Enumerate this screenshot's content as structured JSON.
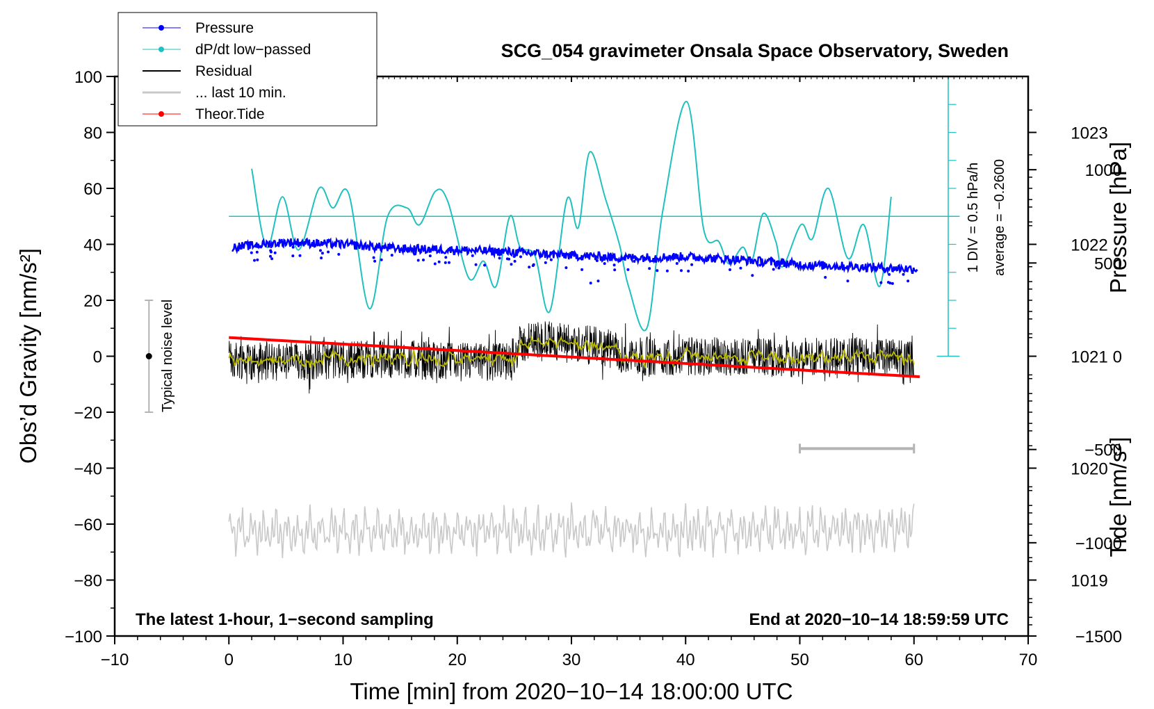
{
  "chart_data": {
    "type": "line",
    "title": "SCG_054 gravimeter Onsala Space Observatory, Sweden",
    "xlabel": "Time [min] from 2020−10−14 18:00:00 UTC",
    "ylabel_left": "Obs’d Gravity [nm/s²]",
    "ylabel_right_pressure": "Pressure [hPa]",
    "ylabel_right_tide": "Tide [nm/s²]",
    "xlim": [
      -10,
      70
    ],
    "ylim": [
      -100,
      100
    ],
    "pressure_ylim": [
      1018.5,
      1023.5
    ],
    "tide_ylim": [
      -1500,
      1500
    ],
    "x_ticks": [
      "−10",
      "0",
      "10",
      "20",
      "30",
      "40",
      "50",
      "60",
      "70"
    ],
    "y_ticks": [
      "100",
      "80",
      "60",
      "40",
      "20",
      "0",
      "−20",
      "−40",
      "−60",
      "−80",
      "−100"
    ],
    "pressure_ticks": [
      "1023",
      "1022",
      "1021",
      "1020",
      "1019"
    ],
    "tide_ticks": [
      "1000",
      "500",
      "0",
      "−500",
      "−1000",
      "−1500"
    ],
    "legend": {
      "position": "top-left",
      "entries": [
        "Pressure",
        "dP/dt low−passed",
        "Residual",
        "... last 10 min.",
        "Theor.Tide"
      ]
    },
    "annotations": {
      "noise": "Typical noise level",
      "div": "1 DIV = 0.5 hPa/h",
      "average": "average = −0.2600",
      "bottom_left": "The latest 1-hour, 1−second sampling",
      "bottom_right": "End at 2020−10−14 18:59:59 UTC"
    },
    "noise_bar": {
      "x": -7,
      "y": 0,
      "range": [
        -20,
        20
      ]
    },
    "last10_bar": {
      "x": [
        50,
        60
      ],
      "y": -33
    },
    "dpdt_zero_level": 50,
    "series": [
      {
        "name": "Pressure",
        "color": "#0000ff",
        "axis": "pressure",
        "x": [
          0,
          5,
          10,
          15,
          20,
          25,
          30,
          35,
          40,
          45,
          50,
          55,
          60
        ],
        "values": [
          1021.97,
          1022.02,
          1022.0,
          1021.96,
          1021.95,
          1021.93,
          1021.9,
          1021.88,
          1021.89,
          1021.86,
          1021.82,
          1021.8,
          1021.78
        ]
      },
      {
        "name": "dP/dt low−passed",
        "color": "#20c0c0",
        "axis": "left",
        "x": [
          2,
          3.3,
          4.7,
          6.1,
          7.9,
          9.1,
          10.5,
          12.3,
          13.9,
          15.6,
          16.7,
          18.1,
          19.2,
          21,
          22.3,
          23.4,
          24.6,
          25.5,
          26.8,
          28.1,
          29.6,
          30.6,
          31.6,
          33,
          34.2,
          35,
          36.6,
          38,
          40.1,
          41.6,
          42.9,
          43.8,
          45,
          45.8,
          46.8,
          47.9,
          48.5,
          50.1,
          51.1,
          52.5,
          54.2,
          55.6,
          57,
          58
        ],
        "values": [
          67,
          39,
          57,
          38,
          60,
          53,
          58,
          17,
          50,
          53,
          47,
          59,
          55,
          28,
          34,
          25,
          50,
          39,
          36,
          16,
          56,
          46,
          73,
          56,
          40,
          25,
          10,
          52,
          91,
          45,
          41,
          33,
          39,
          34,
          51,
          41,
          32,
          47,
          42,
          60,
          35,
          47,
          25,
          57
        ]
      },
      {
        "name": "Residual",
        "color": "#000000",
        "axis": "left",
        "x": [
          0,
          5,
          10,
          15,
          20,
          24.5,
          25.5,
          27,
          30,
          33,
          35,
          40,
          45,
          50,
          55,
          60
        ],
        "values": [
          -1,
          -2,
          -1,
          -1,
          -2,
          -2,
          4,
          6,
          5,
          3,
          0,
          0,
          0,
          -1,
          0,
          -1
        ]
      },
      {
        "name": "... last 10 min.",
        "color": "#c8c8c8",
        "axis": "left",
        "x": [
          0,
          60
        ],
        "values": [
          -63,
          -62
        ]
      },
      {
        "name": "Theor.Tide",
        "color": "#ff0000",
        "axis": "tide",
        "x": [
          0,
          60.5
        ],
        "values": [
          100,
          -110
        ]
      }
    ]
  }
}
